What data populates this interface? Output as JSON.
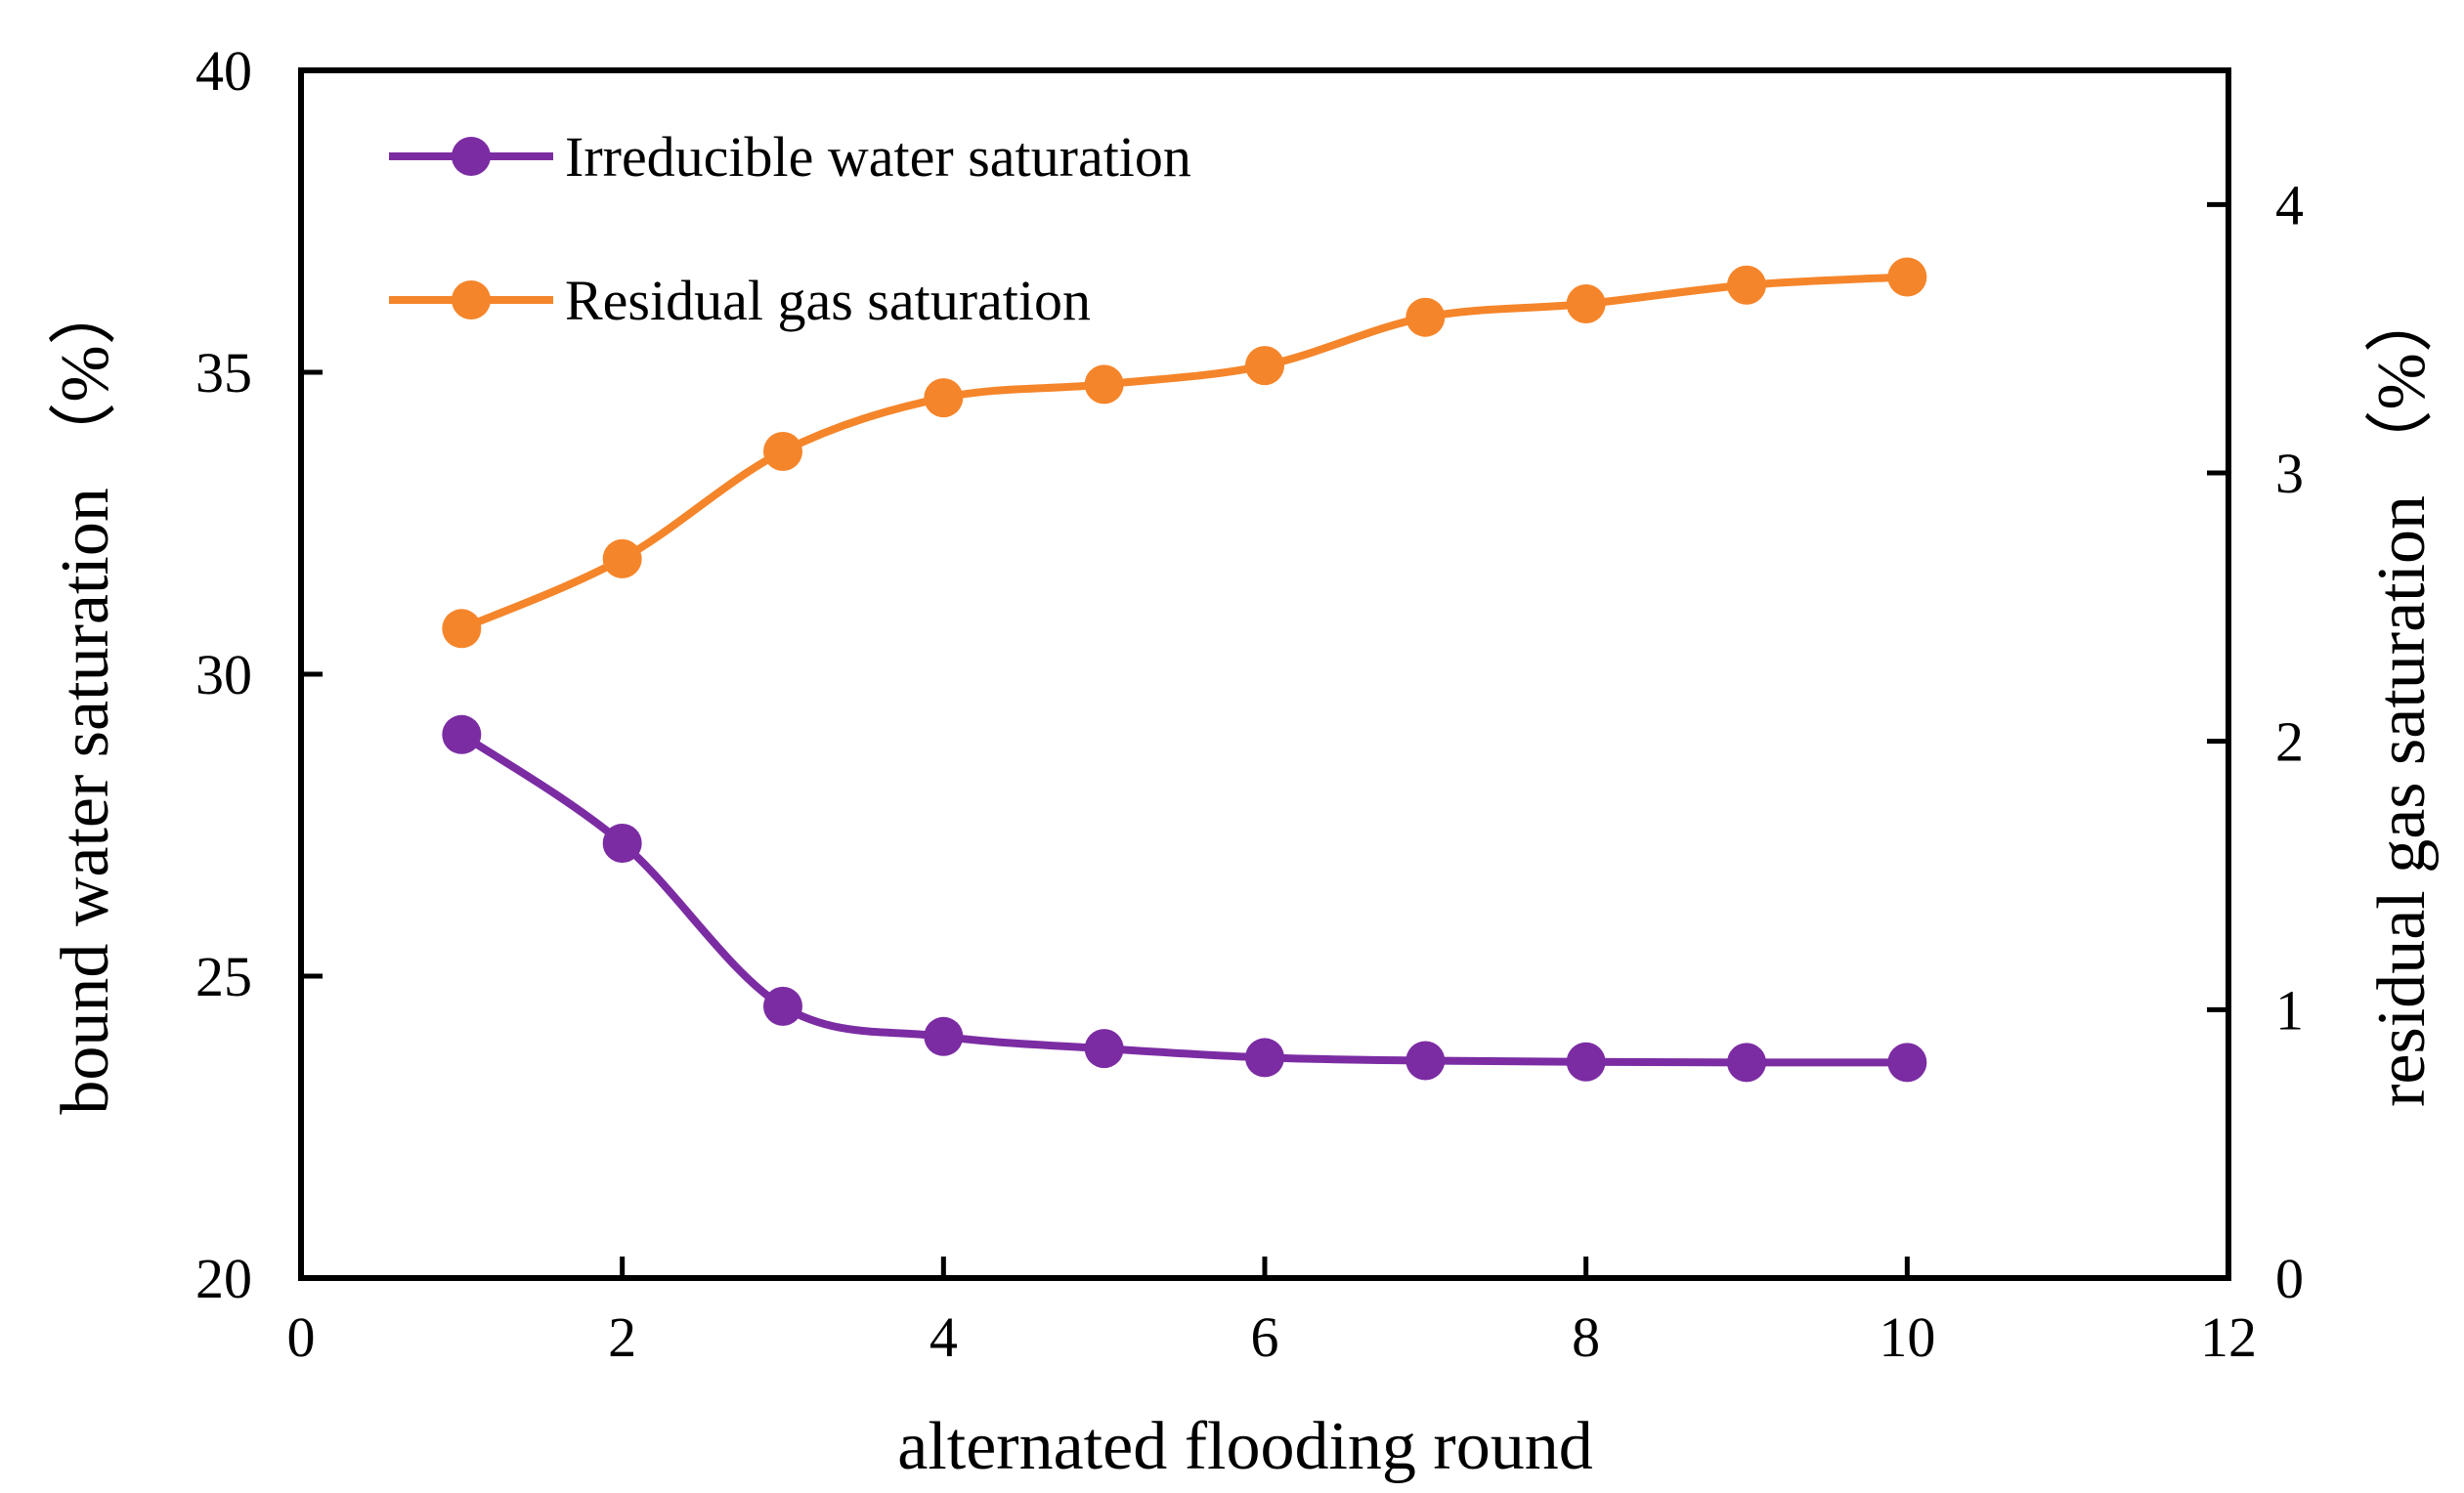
{
  "chart_data": {
    "type": "line",
    "title": "",
    "xlabel": "alternated flooding round",
    "ylabel": "bound water saturation （%）",
    "y2label": "residual gas saturation （%）",
    "xlim": [
      0,
      12
    ],
    "xticks": [
      0,
      2,
      4,
      6,
      8,
      10,
      12
    ],
    "ylim": [
      20,
      40
    ],
    "yticks": [
      20,
      25,
      30,
      35,
      40
    ],
    "y2lim": [
      0,
      4.5
    ],
    "y2ticks": [
      0,
      1,
      2,
      3,
      4
    ],
    "grid": false,
    "legend_position": "top-left",
    "x": [
      1,
      2,
      3,
      4,
      5,
      6,
      7,
      8,
      9,
      10
    ],
    "series": [
      {
        "name": "Irreducible water saturation",
        "axis": "left",
        "color": "#7B2CA3",
        "values": [
          29.0,
          27.2,
          24.5,
          24.0,
          23.8,
          23.65,
          23.6,
          23.58,
          23.57,
          23.57
        ]
      },
      {
        "name": "Residual gas saturation",
        "axis": "right",
        "color": "#F5852A",
        "values": [
          2.42,
          2.68,
          3.08,
          3.28,
          3.33,
          3.4,
          3.58,
          3.63,
          3.7,
          3.73
        ]
      }
    ]
  }
}
